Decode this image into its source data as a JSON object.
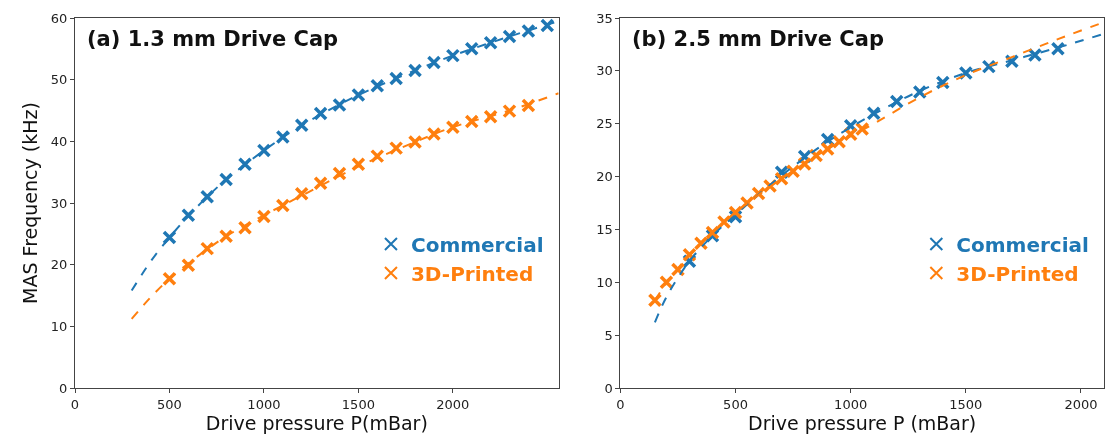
{
  "chart_data": [
    {
      "type": "scatter",
      "title": "(a) 1.3 mm Drive Cap",
      "xlabel": "Drive pressure P(mBar)",
      "ylabel": "MAS Frequency (kHz)",
      "xlim": [
        0,
        2560
      ],
      "ylim": [
        0,
        60
      ],
      "xticks": [
        0,
        500,
        1000,
        1500,
        2000
      ],
      "yticks": [
        0,
        10,
        20,
        30,
        40,
        50,
        60
      ],
      "legend": "center right",
      "marker": "cross",
      "series": [
        {
          "name": "Commercial",
          "color": "#1f77b4",
          "x": [
            500,
            600,
            700,
            800,
            900,
            1000,
            1100,
            1200,
            1300,
            1400,
            1500,
            1600,
            1700,
            1800,
            1900,
            2000,
            2100,
            2200,
            2300,
            2400,
            2500
          ],
          "values": [
            24.4,
            28.0,
            31.0,
            33.8,
            36.3,
            38.5,
            40.7,
            42.6,
            44.5,
            45.9,
            47.5,
            49.0,
            50.2,
            51.5,
            52.8,
            53.9,
            55.0,
            56.0,
            57.0,
            57.9,
            58.8
          ]
        },
        {
          "name": "3D-Printed",
          "color": "#ff7f0e",
          "x": [
            500,
            600,
            700,
            800,
            900,
            1000,
            1100,
            1200,
            1300,
            1400,
            1500,
            1600,
            1700,
            1800,
            1900,
            2000,
            2100,
            2200,
            2300,
            2400
          ],
          "values": [
            17.7,
            19.9,
            22.6,
            24.6,
            26.0,
            27.8,
            29.6,
            31.5,
            33.2,
            34.8,
            36.3,
            37.6,
            38.9,
            39.9,
            41.2,
            42.3,
            43.2,
            44.0,
            44.9,
            45.8
          ]
        },
        {
          "type": "line",
          "color": "#1f77b4",
          "line_style": "dashed",
          "marker": "none",
          "x": [
            300,
            400,
            500,
            600,
            700,
            800,
            1000,
            1200,
            1500,
            1800,
            2000,
            2300,
            2560
          ],
          "values": [
            15.8,
            20.5,
            24.4,
            27.9,
            31.0,
            33.8,
            38.5,
            42.6,
            47.5,
            51.5,
            53.9,
            57.0,
            59.5
          ]
        },
        {
          "type": "line",
          "color": "#ff7f0e",
          "line_style": "dashed",
          "marker": "none",
          "x": [
            300,
            400,
            500,
            600,
            700,
            800,
            1000,
            1200,
            1500,
            1800,
            2000,
            2300,
            2560
          ],
          "values": [
            11.2,
            14.7,
            17.7,
            20.2,
            22.5,
            24.6,
            28.0,
            31.2,
            35.9,
            39.9,
            42.3,
            45.0,
            47.8
          ]
        }
      ]
    },
    {
      "type": "scatter",
      "title": "(b) 2.5 mm Drive Cap",
      "xlabel": "Drive pressure P (mBar)",
      "xlim": [
        0,
        2100
      ],
      "ylim": [
        0,
        35
      ],
      "xticks": [
        0,
        500,
        1000,
        1500,
        2000
      ],
      "yticks": [
        0,
        5,
        10,
        15,
        20,
        25,
        30,
        35
      ],
      "legend": "center right",
      "marker": "cross",
      "series": [
        {
          "name": "Commercial",
          "color": "#1f77b4",
          "x": [
            300,
            400,
            500,
            700,
            800,
            900,
            1000,
            1100,
            1200,
            1300,
            1400,
            1500,
            1600,
            1700,
            1800,
            1900
          ],
          "values": [
            12.0,
            14.4,
            16.2,
            20.4,
            21.9,
            23.5,
            24.8,
            26.0,
            27.1,
            28.0,
            28.9,
            29.8,
            30.4,
            30.9,
            31.5,
            32.1
          ]
        },
        {
          "name": "3D-Printed",
          "color": "#ff7f0e",
          "x": [
            150,
            200,
            250,
            300,
            350,
            400,
            450,
            500,
            550,
            600,
            650,
            700,
            750,
            800,
            850,
            900,
            950,
            1000,
            1050
          ],
          "values": [
            8.3,
            10.0,
            11.2,
            12.6,
            13.7,
            14.7,
            15.7,
            16.6,
            17.5,
            18.4,
            19.1,
            19.8,
            20.5,
            21.2,
            22.0,
            22.6,
            23.3,
            24.0,
            24.5
          ]
        },
        {
          "type": "line",
          "color": "#1f77b4",
          "line_style": "dashed",
          "marker": "none",
          "x": [
            150,
            200,
            300,
            400,
            500,
            700,
            900,
            1100,
            1300,
            1500,
            1700,
            1900,
            2100
          ],
          "values": [
            6.2,
            8.6,
            12.0,
            14.4,
            16.4,
            20.1,
            23.3,
            25.9,
            28.1,
            29.8,
            31.0,
            32.2,
            33.5
          ]
        },
        {
          "type": "line",
          "color": "#ff7f0e",
          "line_style": "dashed",
          "marker": "none",
          "x": [
            150,
            200,
            300,
            400,
            500,
            700,
            900,
            1100,
            1300,
            1500,
            1700,
            1900,
            2100
          ],
          "values": [
            8.3,
            9.9,
            12.6,
            14.7,
            16.6,
            19.8,
            22.6,
            25.0,
            27.5,
            29.6,
            31.3,
            33.0,
            34.6
          ]
        }
      ]
    }
  ]
}
